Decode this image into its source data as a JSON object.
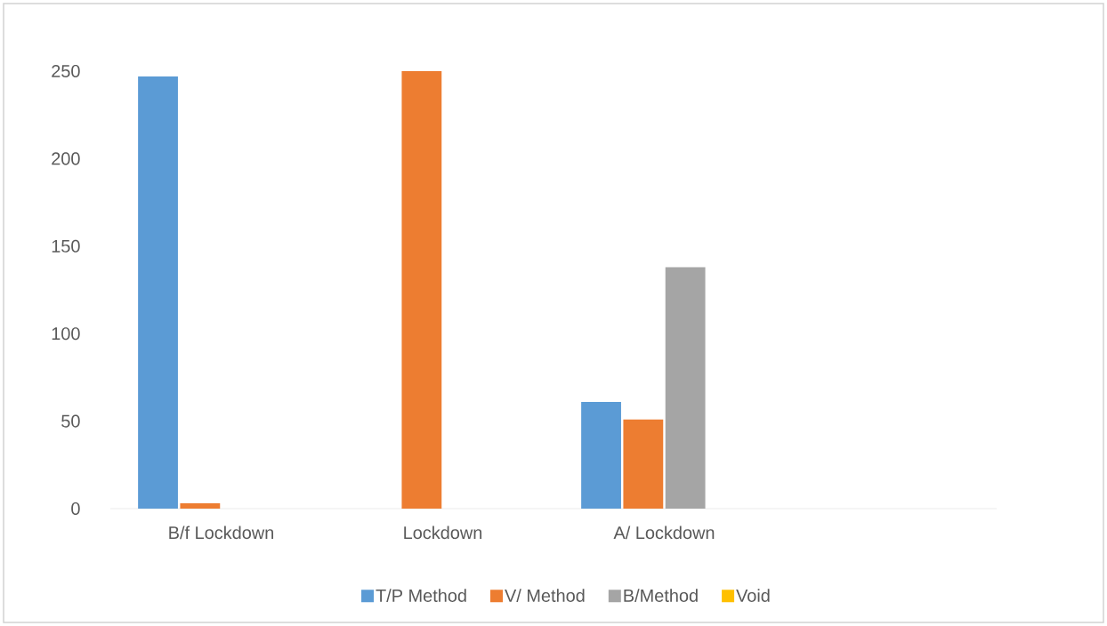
{
  "chart_data": {
    "type": "bar",
    "categories": [
      "B/f Lockdown",
      "Lockdown",
      "A/ Lockdown"
    ],
    "series": [
      {
        "name": "T/P Method",
        "color": "#5b9bd5",
        "values": [
          247,
          0,
          61
        ]
      },
      {
        "name": "V/ Method",
        "color": "#ed7d31",
        "values": [
          3,
          250,
          51
        ]
      },
      {
        "name": "B/Method",
        "color": "#a5a5a5",
        "values": [
          0,
          0,
          138
        ]
      },
      {
        "name": "Void",
        "color": "#ffc000",
        "values": [
          0,
          0,
          0
        ]
      }
    ],
    "ylim": [
      0,
      250
    ],
    "yticks": [
      0,
      50,
      100,
      150,
      200,
      250
    ],
    "grid": false,
    "legend": "bottom"
  }
}
